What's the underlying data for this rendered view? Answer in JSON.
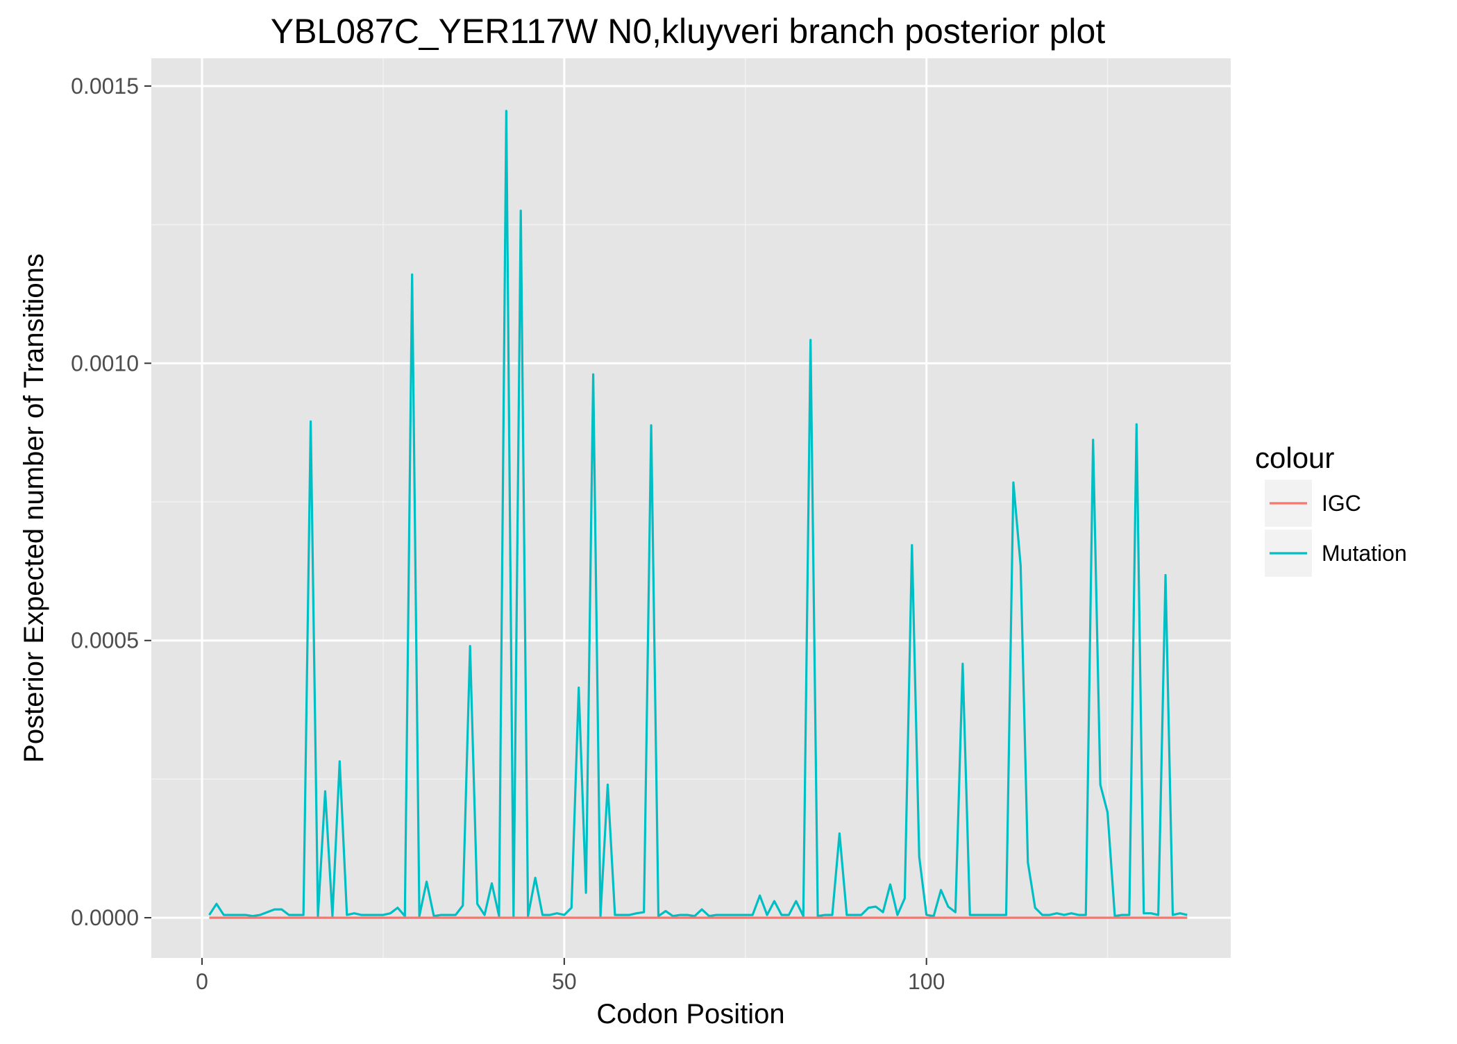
{
  "chart_data": {
    "type": "line",
    "title": "YBL087C_YER117W N0,kluyveri branch posterior plot",
    "xlabel": "Codon Position",
    "ylabel": "Posterior Expected number of Transitions",
    "xlim": [
      -7,
      142
    ],
    "ylim": [
      -7.25e-05,
      0.00155
    ],
    "x_ticks": [
      0,
      50,
      100
    ],
    "x_tick_labels": [
      "0",
      "50",
      "100"
    ],
    "y_ticks": [
      0,
      0.0005,
      0.001,
      0.0015
    ],
    "y_tick_labels": [
      "0.0000",
      "0.0005",
      "0.0010",
      "0.0015"
    ],
    "grid": true,
    "legend": {
      "title": "colour",
      "position": "right"
    },
    "series": [
      {
        "name": "IGC",
        "color": "#F8766D",
        "x": [
          1,
          136
        ],
        "y": [
          0,
          0
        ]
      },
      {
        "name": "Mutation",
        "color": "#00BFC4",
        "x": [
          1,
          2,
          3,
          4,
          5,
          6,
          7,
          8,
          9,
          10,
          11,
          12,
          13,
          14,
          15,
          16,
          17,
          18,
          19,
          20,
          21,
          22,
          23,
          24,
          25,
          26,
          27,
          28,
          29,
          30,
          31,
          32,
          33,
          34,
          35,
          36,
          37,
          38,
          39,
          40,
          41,
          42,
          43,
          44,
          45,
          46,
          47,
          48,
          49,
          50,
          51,
          52,
          53,
          54,
          55,
          56,
          57,
          58,
          59,
          60,
          61,
          62,
          63,
          64,
          65,
          66,
          67,
          68,
          69,
          70,
          71,
          72,
          73,
          74,
          75,
          76,
          77,
          78,
          79,
          80,
          81,
          82,
          83,
          84,
          85,
          86,
          87,
          88,
          89,
          90,
          91,
          92,
          93,
          94,
          95,
          96,
          97,
          98,
          99,
          100,
          101,
          102,
          103,
          104,
          105,
          106,
          107,
          108,
          109,
          110,
          111,
          112,
          113,
          114,
          115,
          116,
          117,
          118,
          119,
          120,
          121,
          122,
          123,
          124,
          125,
          126,
          127,
          128,
          129,
          130,
          131,
          132,
          133,
          134,
          135,
          136
        ],
        "y": [
          5e-06,
          2.5e-05,
          5e-06,
          5e-06,
          5e-06,
          5e-06,
          3e-06,
          5e-06,
          1e-05,
          1.5e-05,
          1.5e-05,
          5e-06,
          5e-06,
          5e-06,
          0.000895,
          3e-06,
          0.000228,
          3e-06,
          0.000282,
          5e-06,
          8e-06,
          5e-06,
          5e-06,
          5e-06,
          5e-06,
          8e-06,
          1.8e-05,
          3e-06,
          0.00116,
          3e-06,
          6.5e-05,
          3e-06,
          5e-06,
          5e-06,
          5e-06,
          2.2e-05,
          0.00049,
          2.5e-05,
          5e-06,
          6.2e-05,
          3e-06,
          0.001455,
          3e-06,
          0.001275,
          3e-06,
          7.2e-05,
          5e-06,
          5e-06,
          8e-06,
          5e-06,
          1.8e-05,
          0.000415,
          4.5e-05,
          0.00098,
          3e-06,
          0.00024,
          5e-06,
          5e-06,
          5e-06,
          8e-06,
          1e-05,
          0.000888,
          3e-06,
          1.2e-05,
          3e-06,
          5e-06,
          5e-06,
          3e-06,
          1.5e-05,
          3e-06,
          5e-06,
          5e-06,
          5e-06,
          5e-06,
          5e-06,
          5e-06,
          4e-05,
          5e-06,
          3e-05,
          5e-06,
          5e-06,
          3e-05,
          3e-06,
          0.001042,
          3e-06,
          5e-06,
          5e-06,
          0.000152,
          5e-06,
          5e-06,
          5e-06,
          1.8e-05,
          2e-05,
          1e-05,
          6e-05,
          5e-06,
          3.5e-05,
          0.000672,
          0.00011,
          5e-06,
          3e-06,
          5e-05,
          2e-05,
          1e-05,
          0.000458,
          5e-06,
          5e-06,
          5e-06,
          5e-06,
          5e-06,
          5e-06,
          0.000785,
          0.000635,
          0.0001,
          1.8e-05,
          5e-06,
          5e-06,
          8e-06,
          5e-06,
          8e-06,
          5e-06,
          5e-06,
          0.000862,
          0.00024,
          0.00019,
          3e-06,
          5e-06,
          5e-06,
          0.00089,
          8e-06,
          8e-06,
          5e-06,
          0.000618,
          5e-06,
          8e-06,
          5e-06
        ]
      }
    ]
  }
}
